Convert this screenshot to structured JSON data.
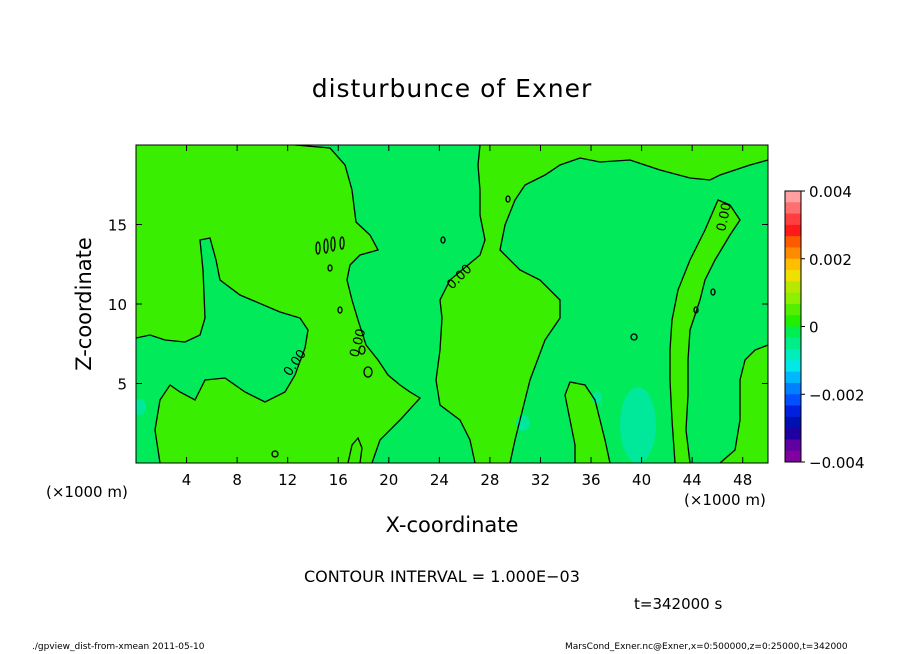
{
  "chart_data": {
    "type": "heatmap",
    "title": "disturbunce of Exner",
    "xlabel": "X-coordinate",
    "ylabel": "Z-coordinate",
    "x_unit": "(×1000 m)",
    "x_ticks": [
      4,
      8,
      12,
      16,
      20,
      24,
      28,
      32,
      36,
      40,
      44,
      48
    ],
    "y_ticks": [
      5,
      10,
      15
    ],
    "xlim": [
      0,
      50
    ],
    "ylim": [
      0,
      20
    ],
    "colorbar": {
      "min": -0.004,
      "max": 0.004,
      "tick_values": [
        0.004,
        0.002,
        0,
        -0.002,
        -0.004
      ],
      "tick_labels": [
        "0.004",
        "0.002",
        "0",
        "−0.002",
        "−0.004"
      ],
      "colors": [
        "#ff9f9f",
        "#ff6f6f",
        "#ff3f3f",
        "#ff1a1a",
        "#ff5a00",
        "#ff8c00",
        "#ffbf00",
        "#f0e000",
        "#b8e800",
        "#8cf000",
        "#55ee00",
        "#22ee00",
        "#00ee50",
        "#00ee88",
        "#00eebb",
        "#00e8e8",
        "#00b8ff",
        "#0080ff",
        "#0050ff",
        "#0020e0",
        "#0010b0",
        "#2000a0",
        "#6000a0",
        "#8000a0"
      ]
    },
    "contour_labels": [
      "0.00",
      "0.00",
      "0.00",
      "0.00"
    ],
    "colors": {
      "positive_region": "#39ee00",
      "negative_region": "#00ea5a",
      "low_region": "#00e89a",
      "contour_line": "#000000"
    }
  },
  "contour_interval": "CONTOUR INTERVAL = 1.000E−03",
  "time_label": "t=342000 s",
  "x_unit_left": "(×1000 m)",
  "x_unit_right": "(×1000 m)",
  "footer_left": "./gpview_dist-from-xmean  2011-05-10",
  "footer_right": "MarsCond_Exner.nc@Exner,x=0:500000,z=0:25000,t=342000"
}
